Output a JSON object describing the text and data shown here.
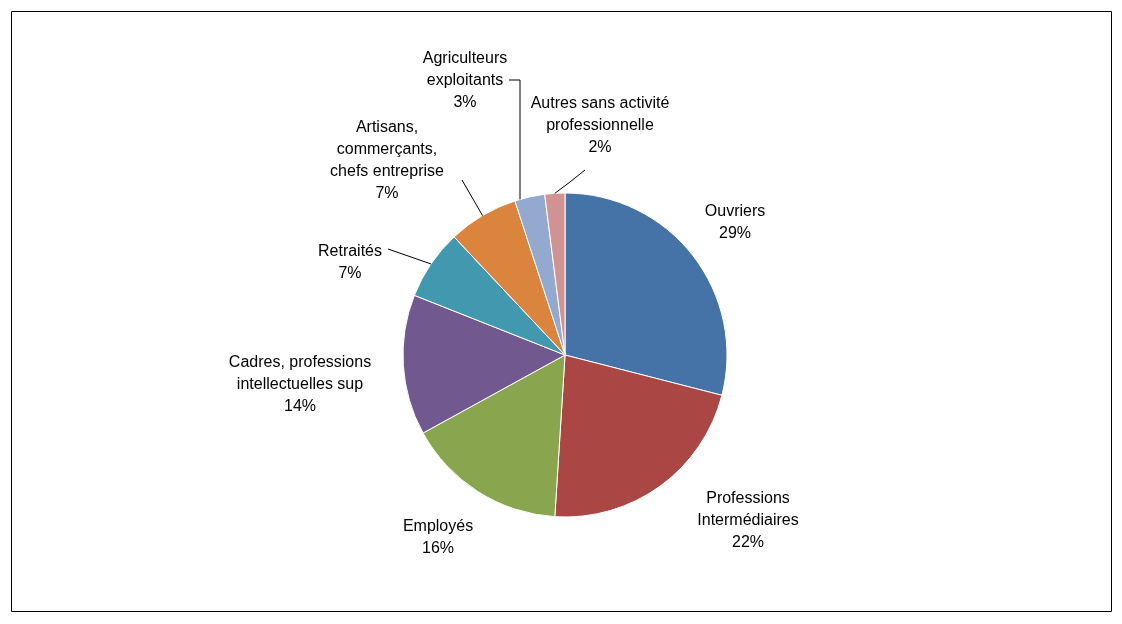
{
  "chart_data": {
    "type": "pie",
    "categories": [
      "Ouvriers",
      "Professions Intermédiaires",
      "Employés",
      "Cadres, professions intellectuelles sup",
      "Retraités",
      "Artisans, commerçants, chefs entreprise",
      "Agriculteurs exploitants",
      "Autres sans activité professionnelle"
    ],
    "values": [
      29,
      22,
      16,
      14,
      7,
      7,
      3,
      2
    ],
    "colors": [
      "#4572a7",
      "#aa4643",
      "#89a54e",
      "#71588f",
      "#4198af",
      "#db843d",
      "#93a9cf",
      "#d19392"
    ],
    "value_labels": [
      "29%",
      "22%",
      "16%",
      "14%",
      "7%",
      "7%",
      "3%",
      "2%"
    ],
    "legend": false
  }
}
